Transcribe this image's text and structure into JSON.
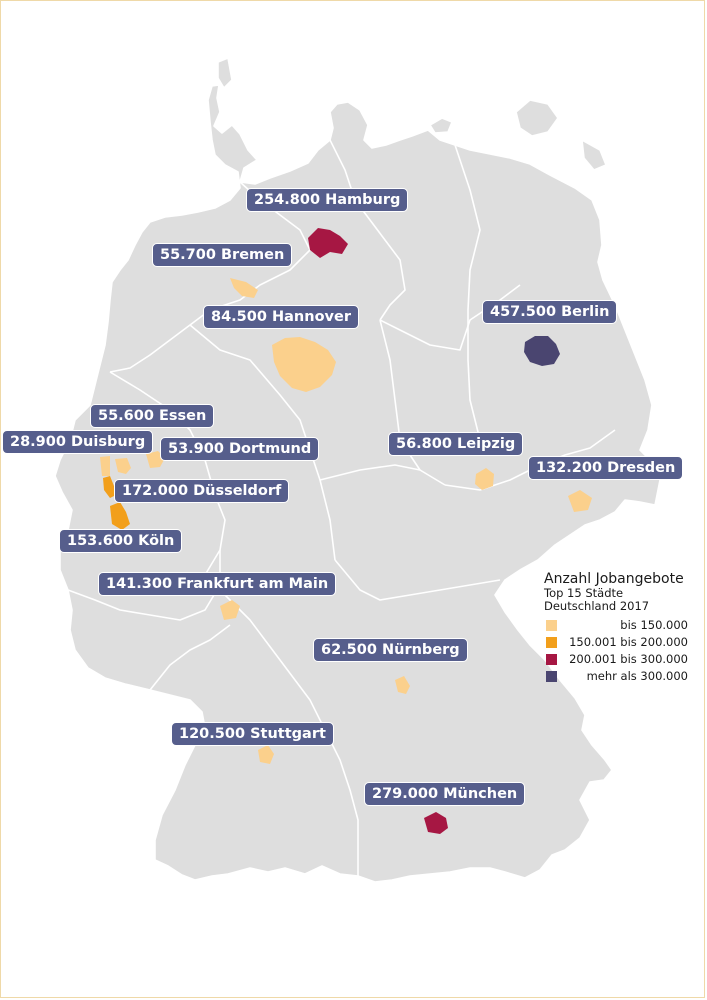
{
  "map": {
    "cities": [
      {
        "id": "hamburg",
        "label": "254.800 Hamburg",
        "value": 254800,
        "name": "Hamburg",
        "category": "c3"
      },
      {
        "id": "bremen",
        "label": "55.700 Bremen",
        "value": 55700,
        "name": "Bremen",
        "category": "c1"
      },
      {
        "id": "hannover",
        "label": "84.500 Hannover",
        "value": 84500,
        "name": "Hannover",
        "category": "c1"
      },
      {
        "id": "berlin",
        "label": "457.500  Berlin",
        "value": 457500,
        "name": "Berlin",
        "category": "c4"
      },
      {
        "id": "essen",
        "label": "55.600 Essen",
        "value": 55600,
        "name": "Essen",
        "category": "c1"
      },
      {
        "id": "duisburg",
        "label": "28.900 Duisburg",
        "value": 28900,
        "name": "Duisburg",
        "category": "c1"
      },
      {
        "id": "dortmund",
        "label": "53.900 Dortmund",
        "value": 53900,
        "name": "Dortmund",
        "category": "c1"
      },
      {
        "id": "leipzig",
        "label": "56.800 Leipzig",
        "value": 56800,
        "name": "Leipzig",
        "category": "c1"
      },
      {
        "id": "dresden",
        "label": "132.200 Dresden",
        "value": 132200,
        "name": "Dresden",
        "category": "c1"
      },
      {
        "id": "duesseldorf",
        "label": "172.000 Düsseldorf",
        "value": 172000,
        "name": "Düsseldorf",
        "category": "c2"
      },
      {
        "id": "koeln",
        "label": "153.600 Köln",
        "value": 153600,
        "name": "Köln",
        "category": "c2"
      },
      {
        "id": "frankfurt",
        "label": "141.300 Frankfurt am Main",
        "value": 141300,
        "name": "Frankfurt am Main",
        "category": "c1"
      },
      {
        "id": "nuernberg",
        "label": "62.500 Nürnberg",
        "value": 62500,
        "name": "Nürnberg",
        "category": "c1"
      },
      {
        "id": "stuttgart",
        "label": "120.500 Stuttgart",
        "value": 120500,
        "name": "Stuttgart",
        "category": "c1"
      },
      {
        "id": "muenchen",
        "label": "279.000 München",
        "value": 279000,
        "name": "München",
        "category": "c3"
      }
    ]
  },
  "legend": {
    "title": "Anzahl Jobangebote",
    "subtitle_1": "Top 15 Städte",
    "subtitle_2": "Deutschland 2017",
    "items": [
      {
        "label": "bis 150.000",
        "color": "#fbd08c"
      },
      {
        "label": "150.001 bis 200.000",
        "color": "#f29f1b"
      },
      {
        "label": "200.001 bis 300.000",
        "color": "#a61743"
      },
      {
        "label": "mehr als 300.000",
        "color": "#4a4570"
      }
    ]
  },
  "colors": {
    "land": "#dedede",
    "border": "#ffffff",
    "label_bg": "#565e8c",
    "c1": "#fbd08c",
    "c2": "#f29f1b",
    "c3": "#a61743",
    "c4": "#4a4570"
  }
}
